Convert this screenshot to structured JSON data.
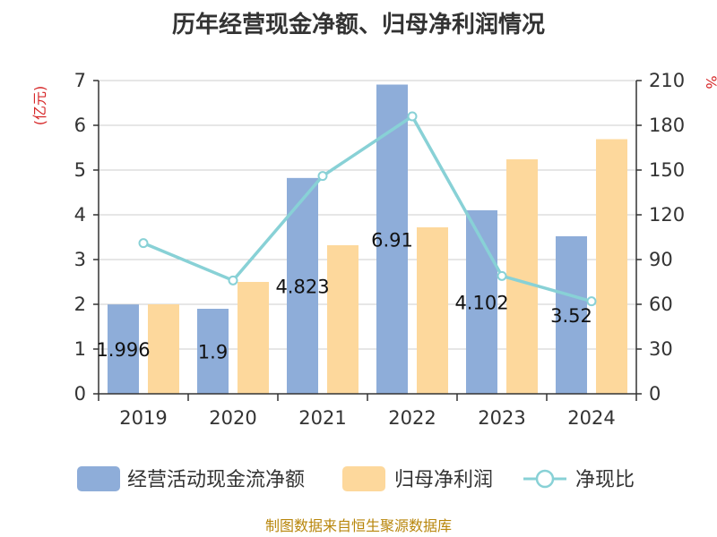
{
  "chart_data": {
    "type": "bar",
    "title": "历年经营现金净额、归母净利润情况",
    "categories": [
      "2019",
      "2020",
      "2021",
      "2022",
      "2023",
      "2024"
    ],
    "series": [
      {
        "name": "经营活动现金流净额",
        "kind": "bar",
        "axis": "left",
        "color": "#8eadd9",
        "values": [
          1.996,
          1.9,
          4.823,
          6.91,
          4.102,
          3.52
        ],
        "labels": [
          "1.996",
          "1.9",
          "4.823",
          "6.91",
          "4.102",
          "3.52"
        ]
      },
      {
        "name": "归母净利润",
        "kind": "bar",
        "axis": "left",
        "color": "#fdd89c",
        "values": [
          2.0,
          2.5,
          3.32,
          3.72,
          5.24,
          5.69
        ]
      },
      {
        "name": "净现比",
        "kind": "line",
        "axis": "right",
        "color": "#88d1d6",
        "values": [
          101,
          76,
          146,
          186,
          79,
          62
        ]
      }
    ],
    "left_axis": {
      "unit": "(亿元)",
      "ylim": [
        0,
        7
      ],
      "ticks": [
        "0",
        "1",
        "2",
        "3",
        "4",
        "5",
        "6",
        "7"
      ]
    },
    "right_axis": {
      "unit": "%",
      "ylim": [
        0,
        210
      ],
      "ticks": [
        "0",
        "30",
        "60",
        "90",
        "120",
        "150",
        "180",
        "210"
      ]
    },
    "grid": true,
    "legend_position": "bottom"
  },
  "source": "制图数据来自恒生聚源数据库"
}
